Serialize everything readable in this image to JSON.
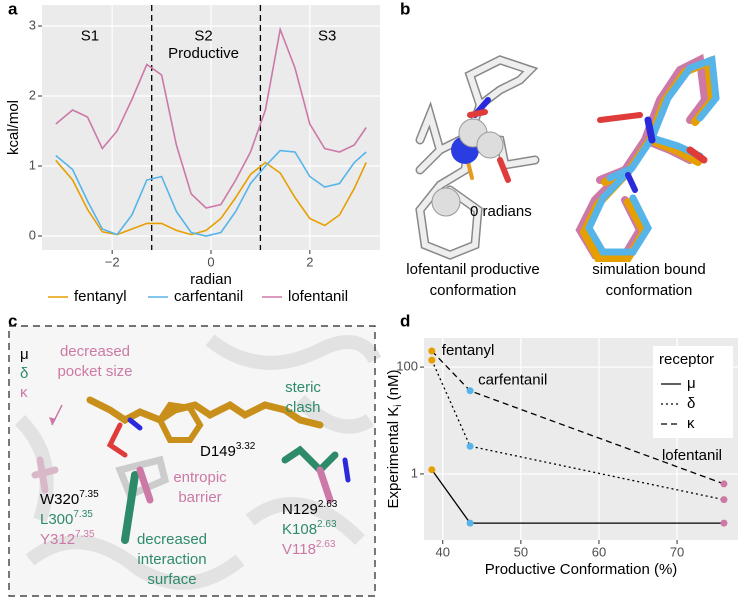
{
  "panel_labels": [
    "a",
    "b",
    "c",
    "d"
  ],
  "chart_data": [
    {
      "type": "line",
      "ylabel": "kcal/mol",
      "xlabel": "radian",
      "x": [
        -3.14,
        -2.8,
        -2.5,
        -2.2,
        -1.9,
        -1.6,
        -1.3,
        -1.0,
        -0.7,
        -0.4,
        -0.1,
        0.2,
        0.5,
        0.8,
        1.1,
        1.4,
        1.7,
        2.0,
        2.3,
        2.6,
        2.9,
        3.14
      ],
      "series": [
        {
          "name": "fentanyl",
          "color": "#E69F00",
          "dash": "solid",
          "values": [
            1.08,
            0.8,
            0.38,
            0.06,
            0.02,
            0.1,
            0.18,
            0.18,
            0.08,
            0.02,
            0.08,
            0.25,
            0.55,
            0.88,
            1.05,
            0.9,
            0.55,
            0.25,
            0.15,
            0.3,
            0.68,
            1.05
          ]
        },
        {
          "name": "carfentanil",
          "color": "#56B4E9",
          "dash": "solid",
          "values": [
            1.15,
            0.95,
            0.5,
            0.1,
            0.02,
            0.3,
            0.8,
            0.85,
            0.35,
            0.05,
            0.0,
            0.05,
            0.35,
            0.75,
            1.0,
            1.22,
            1.2,
            0.85,
            0.7,
            0.75,
            1.05,
            1.2
          ]
        },
        {
          "name": "lofentanil",
          "color": "#CC79A7",
          "dash": "solid",
          "values": [
            1.6,
            1.8,
            1.7,
            1.25,
            1.5,
            1.95,
            2.45,
            2.3,
            1.3,
            0.6,
            0.4,
            0.45,
            0.8,
            1.2,
            1.8,
            2.95,
            2.4,
            1.6,
            1.25,
            1.2,
            1.3,
            1.55
          ]
        }
      ],
      "xlim": [
        -3.42,
        3.42
      ],
      "ylim": [
        -0.2,
        3.3
      ],
      "xticks": [
        {
          "value": -2,
          "label": "−2"
        },
        0,
        2
      ],
      "yticks": [
        0,
        1,
        2,
        3
      ],
      "vlines": [
        -1.2,
        1.0
      ],
      "annotations": [
        "S1",
        "S2",
        "Productive",
        "S3"
      ],
      "grid": true,
      "log_y": false,
      "points": false,
      "legend": "bottom"
    },
    {
      "type": "line",
      "xlabel": "Productive Conformation (%)",
      "ylabel": {
        "text": "Experimental K",
        "sub": "i",
        "unit": " (nM)"
      },
      "x": [
        38.6,
        43.5,
        76
      ],
      "point_labels": [
        "fentanyl",
        "carfentanil",
        "lofentanil"
      ],
      "point_colors": [
        "#E69F00",
        "#56B4E9",
        "#CC79A7"
      ],
      "series": [
        {
          "name": "μ",
          "color": "#000000",
          "dash": "solid",
          "values": [
            1.2,
            0.12,
            0.12
          ]
        },
        {
          "name": "δ",
          "color": "#000000",
          "dash": "dotted",
          "values": [
            135,
            3.3,
            0.33
          ]
        },
        {
          "name": "κ",
          "color": "#000000",
          "dash": "dashed",
          "values": [
            200,
            36,
            0.65
          ]
        }
      ],
      "xlim": [
        37.6,
        77.8
      ],
      "ylim": [
        0.058,
        350
      ],
      "xticks": [
        40,
        50,
        60,
        70
      ],
      "yticks": [
        1,
        100
      ],
      "grid": true,
      "log_y": true,
      "points": true,
      "legend": "top-right",
      "legend_title": "receptor"
    }
  ],
  "panel_b": {
    "sphere_label": "0 radians",
    "captions": [
      [
        "lofentanil productive",
        "conformation"
      ],
      [
        "simulation bound",
        "conformation"
      ]
    ]
  },
  "panel_c": {
    "receptors": [
      "μ",
      "δ",
      "κ"
    ],
    "pocket": [
      "decreased",
      "pocket size"
    ],
    "clash": [
      "steric",
      "clash"
    ],
    "d149": {
      "text": "D149",
      "sup": "3.32"
    },
    "w320": [
      {
        "text": "W320",
        "sup": "7.35"
      },
      {
        "text": "L300",
        "sup": "7.35"
      },
      {
        "text": "Y312",
        "sup": "7.35"
      }
    ],
    "entropic": [
      "entropic",
      "barrier"
    ],
    "surface": [
      "decreased",
      "interaction",
      "surface"
    ],
    "n129": [
      {
        "text": "N129",
        "sup": "2.63"
      },
      {
        "text": "K108",
        "sup": "2.63"
      },
      {
        "text": "V118",
        "sup": "2.63"
      }
    ]
  }
}
